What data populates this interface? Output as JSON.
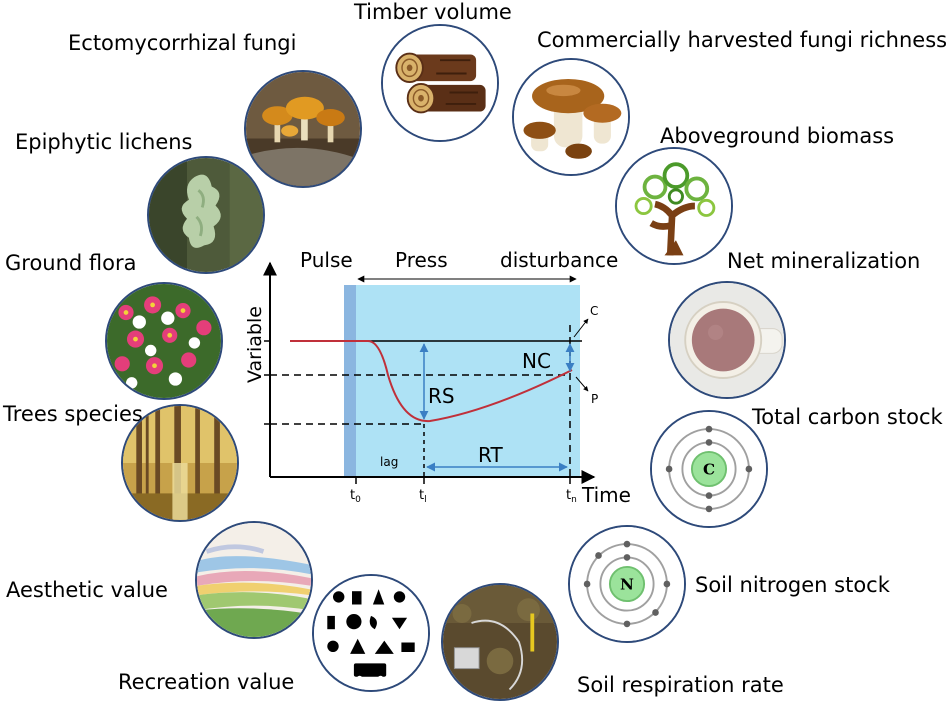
{
  "services": {
    "timber_volume": "Timber volume",
    "ecto_fungi": "Ectomycorrhizal fungi",
    "harvested_fungi": "Commercially harvested fungi richness",
    "epiphytic_lichens": "Epiphytic lichens",
    "aboveground_biomass": "Aboveground biomass",
    "ground_flora": "Ground flora",
    "net_mineralization": "Net mineralization",
    "trees_species": "Trees species",
    "total_carbon": "Total carbon stock",
    "aesthetic_value": "Aesthetic value",
    "soil_nitrogen": "Soil nitrogen stock",
    "recreation_value": "Recreation value",
    "soil_respiration": "Soil respiration rate"
  },
  "atoms": {
    "carbon_symbol": "C",
    "nitrogen_symbol": "N"
  },
  "diagram": {
    "pulse": "Pulse",
    "press": "Press",
    "disturbance": "disturbance",
    "y_axis": "Variable",
    "x_axis": "Time",
    "lag": "lag",
    "rs": "RS",
    "rt": "RT",
    "nc": "NC",
    "c": "C",
    "p": "P",
    "t0": "t",
    "t0_sub": "0",
    "tl": "t",
    "tl_sub": "l",
    "tn": "t",
    "tn_sub": "n",
    "colors": {
      "press_band": "#aee2f5",
      "pulse_band": "#8bb6e0",
      "curve": "#c0303a",
      "arrows": "#3a7fc4",
      "axis": "#000000"
    }
  }
}
